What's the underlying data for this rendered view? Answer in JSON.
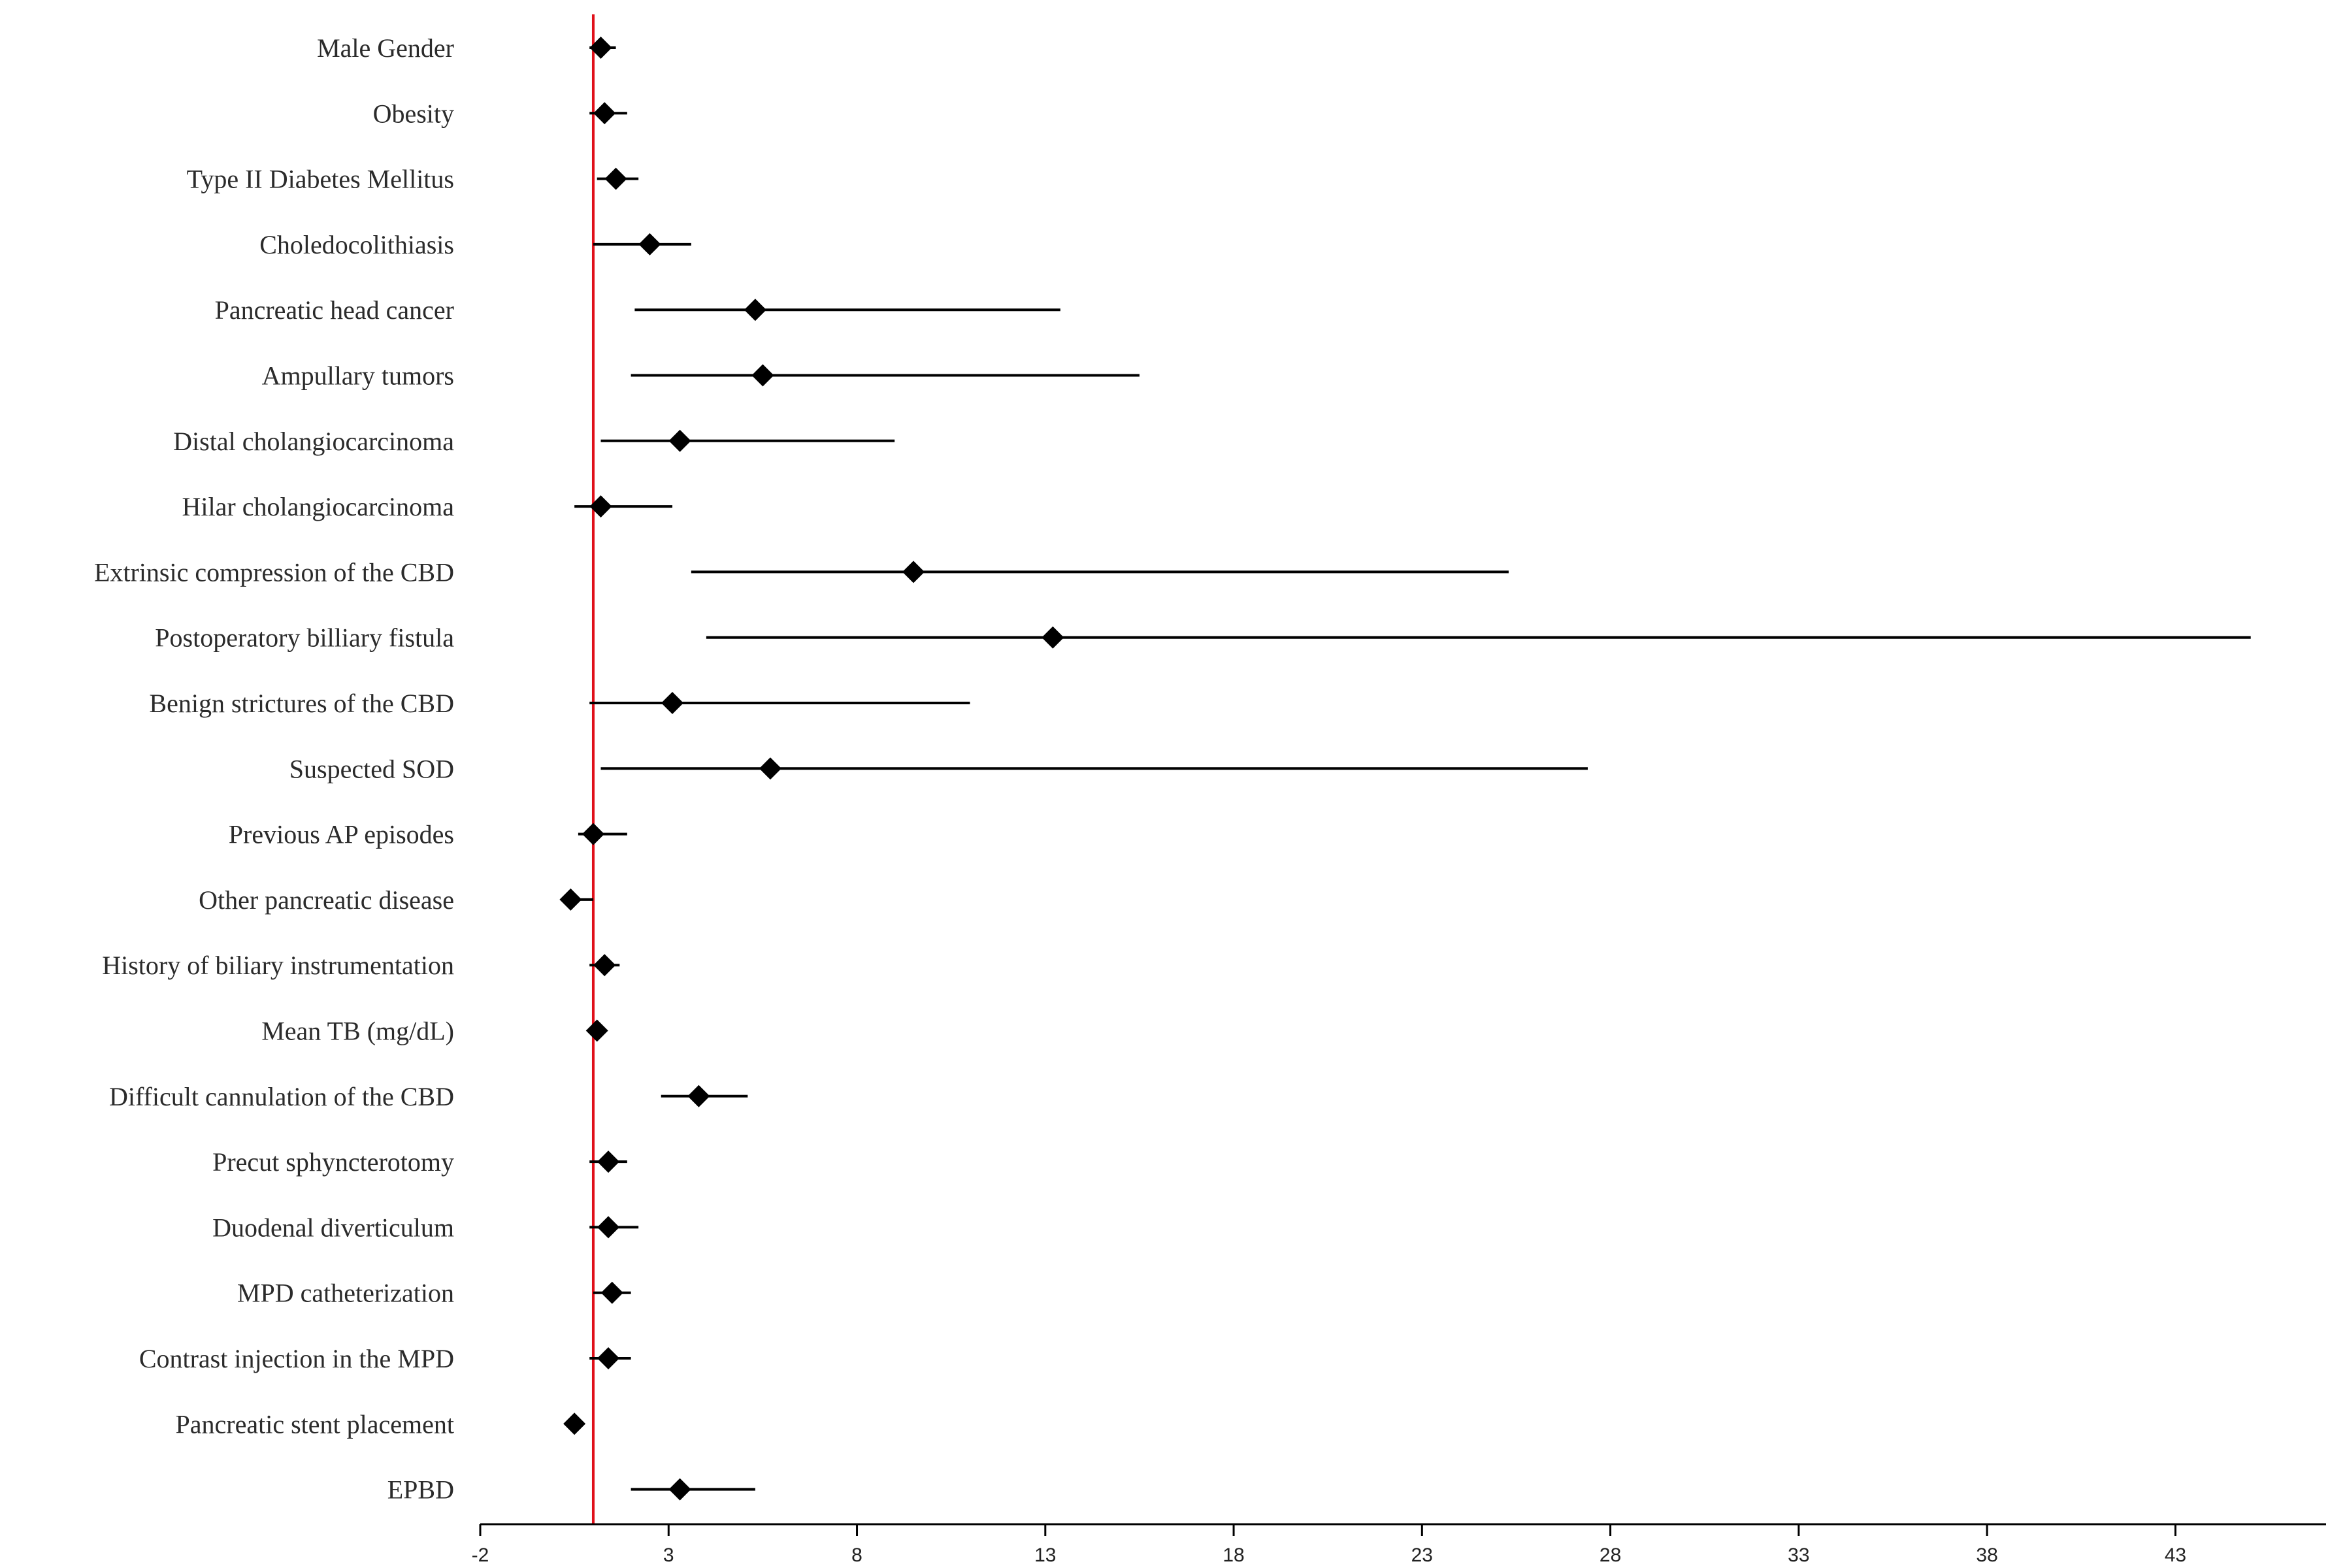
{
  "chart_data": {
    "type": "forest",
    "title": "",
    "xlabel": "",
    "ylabel": "",
    "xlim": [
      -2,
      47
    ],
    "xticks": [
      -2,
      3,
      8,
      13,
      18,
      23,
      28,
      33,
      38,
      43
    ],
    "reference_line": {
      "x": 1,
      "color": "#e0101a"
    },
    "marker_color": "#000000",
    "line_color": "#000000",
    "rows": [
      {
        "label": "Male Gender",
        "estimate": 1.2,
        "low": 0.9,
        "high": 1.6
      },
      {
        "label": "Obesity",
        "estimate": 1.3,
        "low": 0.9,
        "high": 1.9
      },
      {
        "label": "Type II Diabetes Mellitus",
        "estimate": 1.6,
        "low": 1.1,
        "high": 2.2
      },
      {
        "label": "Choledocolithiasis",
        "estimate": 2.5,
        "low": 1.0,
        "high": 3.6
      },
      {
        "label": "Pancreatic head cancer",
        "estimate": 5.3,
        "low": 2.1,
        "high": 13.4
      },
      {
        "label": "Ampullary tumors",
        "estimate": 5.5,
        "low": 2.0,
        "high": 15.5
      },
      {
        "label": "Distal cholangiocarcinoma",
        "estimate": 3.3,
        "low": 1.2,
        "high": 9.0
      },
      {
        "label": "Hilar cholangiocarcinoma",
        "estimate": 1.2,
        "low": 0.5,
        "high": 3.1
      },
      {
        "label": "Extrinsic compression of the CBD",
        "estimate": 9.5,
        "low": 3.6,
        "high": 25.3
      },
      {
        "label": "Postoperatory billiary fistula",
        "estimate": 13.2,
        "low": 4.0,
        "high": 45.0
      },
      {
        "label": "Benign strictures of the CBD",
        "estimate": 3.1,
        "low": 0.9,
        "high": 11.0
      },
      {
        "label": "Suspected SOD",
        "estimate": 5.7,
        "low": 1.2,
        "high": 27.4
      },
      {
        "label": "Previous AP episodes",
        "estimate": 1.0,
        "low": 0.6,
        "high": 1.9
      },
      {
        "label": "Other pancreatic disease",
        "estimate": 0.4,
        "low": 0.3,
        "high": 1.0
      },
      {
        "label": "History of biliary instrumentation",
        "estimate": 1.3,
        "low": 0.9,
        "high": 1.7
      },
      {
        "label": "Mean TB (mg/dL)",
        "estimate": 1.1,
        "low": 0.9,
        "high": 1.3
      },
      {
        "label": "Difficult cannulation of the CBD",
        "estimate": 3.8,
        "low": 2.8,
        "high": 5.1
      },
      {
        "label": "Precut sphyncterotomy",
        "estimate": 1.4,
        "low": 0.9,
        "high": 1.9
      },
      {
        "label": "Duodenal diverticulum",
        "estimate": 1.4,
        "low": 0.9,
        "high": 2.2
      },
      {
        "label": "MPD catheterization",
        "estimate": 1.5,
        "low": 1.0,
        "high": 2.0
      },
      {
        "label": "Contrast injection in the MPD",
        "estimate": 1.4,
        "low": 0.9,
        "high": 2.0
      },
      {
        "label": "Pancreatic stent placement",
        "estimate": 0.5,
        "low": 0.4,
        "high": 0.7
      },
      {
        "label": "EPBD",
        "estimate": 3.3,
        "low": 2.0,
        "high": 5.3
      }
    ]
  }
}
